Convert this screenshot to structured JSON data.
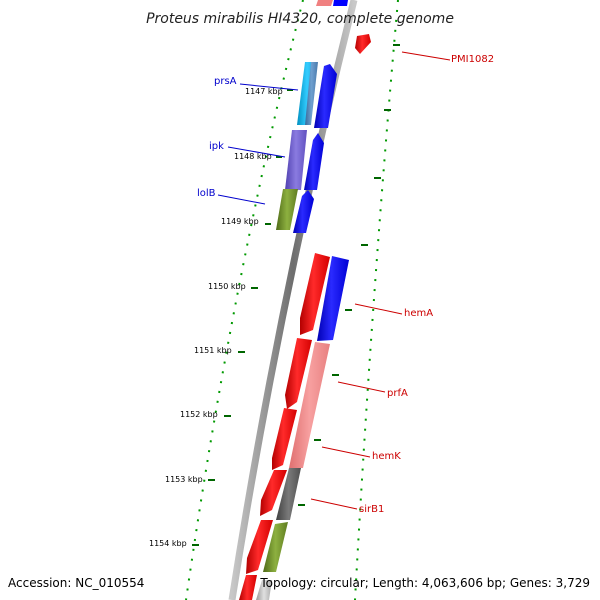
{
  "title": "Proteus mirabilis HI4320, complete genome",
  "footer": {
    "accession": "Accession: NC_010554",
    "topology": "Topology: circular; Length: 4,063,606 bp; Genes: 3,729"
  },
  "ticks": [
    "1147 kbp",
    "1148 kbp",
    "1149 kbp",
    "1150 kbp",
    "1151 kbp",
    "1152 kbp",
    "1153 kbp",
    "1154 kbp"
  ],
  "genes": [
    {
      "label": "PMI1082",
      "color": "#cc0000"
    },
    {
      "label": "prsA",
      "color": "#0000cc"
    },
    {
      "label": "ipk",
      "color": "#0000cc"
    },
    {
      "label": "lolB",
      "color": "#0000cc"
    },
    {
      "label": "hemA",
      "color": "#cc0000"
    },
    {
      "label": "prfA",
      "color": "#cc0000"
    },
    {
      "label": "hemK",
      "color": "#cc0000"
    },
    {
      "label": "sirB1",
      "color": "#cc0000"
    }
  ],
  "colors": {
    "forward_strand": "#ff0000",
    "reverse_strand": "#0000ff",
    "tick": "#006600",
    "backbone": "#808080",
    "light_red": "#f08080",
    "cyan": "#1ab3e6",
    "purple": "#6a5acd",
    "olive": "#6b8e23",
    "dark_gray": "#555555"
  }
}
